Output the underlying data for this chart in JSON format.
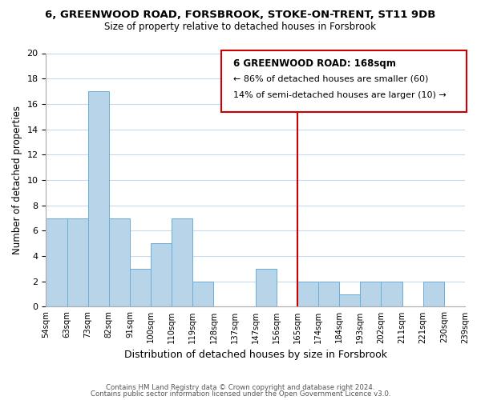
{
  "title": "6, GREENWOOD ROAD, FORSBROOK, STOKE-ON-TRENT, ST11 9DB",
  "subtitle": "Size of property relative to detached houses in Forsbrook",
  "xlabel": "Distribution of detached houses by size in Forsbrook",
  "ylabel": "Number of detached properties",
  "bar_values": [
    7,
    7,
    17,
    7,
    3,
    5,
    7,
    2,
    0,
    0,
    3,
    0,
    2,
    2,
    1,
    2,
    2,
    0,
    2,
    0
  ],
  "bar_labels": [
    "54sqm",
    "63sqm",
    "73sqm",
    "82sqm",
    "91sqm",
    "100sqm",
    "110sqm",
    "119sqm",
    "128sqm",
    "137sqm",
    "147sqm",
    "156sqm",
    "165sqm",
    "174sqm",
    "184sqm",
    "193sqm",
    "202sqm",
    "211sqm",
    "221sqm",
    "230sqm",
    "239sqm"
  ],
  "bar_color": "#b8d4e8",
  "bar_edge_color": "#6aaed6",
  "vline_color": "#cc0000",
  "vline_pos": 12,
  "ylim": [
    0,
    20
  ],
  "yticks": [
    0,
    2,
    4,
    6,
    8,
    10,
    12,
    14,
    16,
    18,
    20
  ],
  "annotation_title": "6 GREENWOOD ROAD: 168sqm",
  "annotation_line1": "← 86% of detached houses are smaller (60)",
  "annotation_line2": "14% of semi-detached houses are larger (10) →",
  "footer1": "Contains HM Land Registry data © Crown copyright and database right 2024.",
  "footer2": "Contains public sector information licensed under the Open Government Licence v3.0.",
  "box_edge_color": "#cc0000",
  "background_color": "#ffffff",
  "grid_color": "#c8d8e8"
}
